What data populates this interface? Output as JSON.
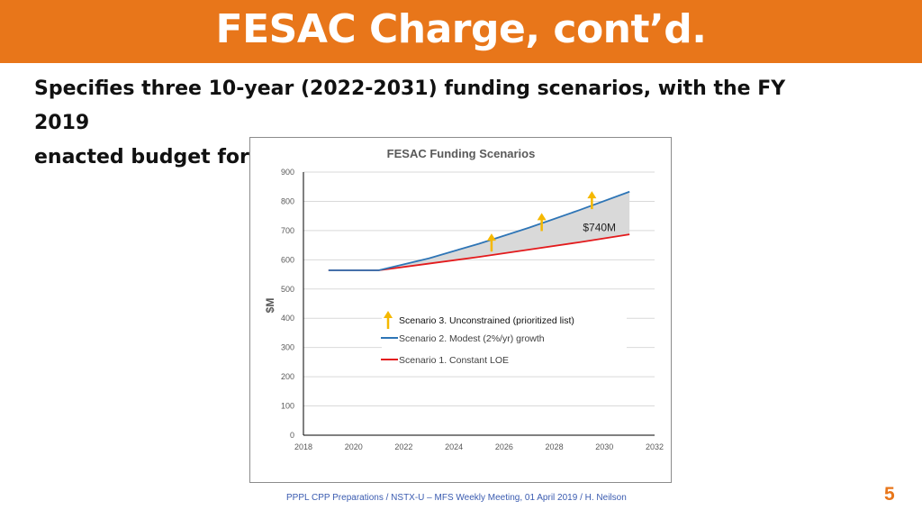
{
  "header": {
    "title": "FESAC Charge, cont’d."
  },
  "body": {
    "subtitle_line1": "Specifies three 10-year (2022-2031) funding scenarios, with the FY 2019",
    "subtitle_line2": "enacted budget for the FES program as the baseline:"
  },
  "footer": {
    "text": "PPPL CPP Preparations / NSTX-U – MFS Weekly Meeting, 01 April 2019  / H. Neilson",
    "page_number": "5"
  },
  "colors": {
    "accent": "#E8761A",
    "scenario2": "#2E75B6",
    "scenario1": "#E31A1C",
    "arrow": "#F5B800",
    "fill": "#D9D9D9"
  },
  "chart_data": {
    "type": "line",
    "title": "FESAC Funding Scenarios",
    "ylabel": "$M",
    "xlabel": "",
    "xlim": [
      2018,
      2032
    ],
    "ylim": [
      0,
      900
    ],
    "xticks": [
      2018,
      2020,
      2022,
      2024,
      2026,
      2028,
      2030,
      2032
    ],
    "yticks": [
      0,
      100,
      200,
      300,
      400,
      500,
      600,
      700,
      800,
      900
    ],
    "grid": true,
    "legend_position": "center",
    "series": [
      {
        "name": "Scenario 3. Unconstrained (prioritized list)",
        "marker": "arrow",
        "x": [
          2025.5,
          2027.5,
          2029.5
        ],
        "y": [
          690,
          760,
          835
        ]
      },
      {
        "name": "Scenario 2. Modest (2%/yr)  growth",
        "x": [
          2019,
          2021,
          2023,
          2025,
          2027,
          2029,
          2031
        ],
        "y": [
          564,
          564,
          605,
          655,
          710,
          770,
          833
        ]
      },
      {
        "name": "Scenario 1. Constant LOE",
        "x": [
          2019,
          2021,
          2023,
          2025,
          2027,
          2029,
          2031
        ],
        "y": [
          564,
          564,
          587,
          610,
          635,
          660,
          687
        ]
      }
    ],
    "annotations": [
      {
        "text": "$740M",
        "x": 2029.8,
        "y": 710
      }
    ]
  }
}
